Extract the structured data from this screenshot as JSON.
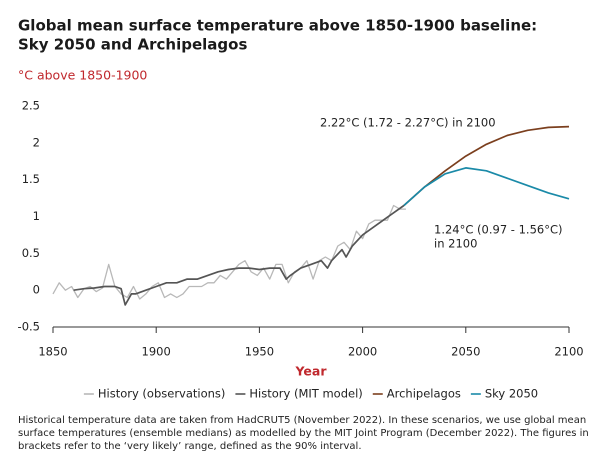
{
  "chart_data": {
    "type": "line",
    "title": [
      "Global mean surface temperature above 1850-1900 baseline:",
      "Sky 2050 and Archipelagos"
    ],
    "y_label": "°C above 1850-1900",
    "x_label": "Year",
    "annotations": [
      "2.22°C (1.72 - 2.27°C) in 2100",
      "1.24°C (0.97 - 1.56°C)",
      "in 2100"
    ],
    "note": "Historical temperature data are taken from HadCRUT5 (November 2022). In these scenarios, we use global mean surface temperatures (ensemble medians) as modelled by the MIT Joint Program (December 2022). The figures in brackets refer to the ‘very likely’ range, defined as the 90% interval.",
    "xlim": [
      1850,
      2100
    ],
    "xticks": [
      1850,
      1900,
      1950,
      2000,
      2050,
      2100
    ],
    "ylim": [
      -0.5,
      2.5
    ],
    "yticks": [
      -0.5,
      0,
      0.5,
      1,
      1.5,
      2,
      2.5
    ],
    "grid": false,
    "series": [
      {
        "name": "History (observations)",
        "color": "#b8b8b8",
        "x": [
          1850,
          1853,
          1856,
          1859,
          1862,
          1865,
          1868,
          1871,
          1874,
          1877,
          1880,
          1883,
          1886,
          1889,
          1892,
          1895,
          1898,
          1901,
          1904,
          1907,
          1910,
          1913,
          1916,
          1919,
          1922,
          1925,
          1928,
          1931,
          1934,
          1937,
          1940,
          1943,
          1946,
          1949,
          1952,
          1955,
          1958,
          1961,
          1964,
          1967,
          1970,
          1973,
          1976,
          1979,
          1982,
          1985,
          1988,
          1991,
          1994,
          1997,
          2000,
          2003,
          2006,
          2009,
          2012,
          2015,
          2018,
          2021
        ],
        "values": [
          -0.05,
          0.1,
          0.0,
          0.05,
          -0.1,
          0.02,
          0.05,
          -0.02,
          0.03,
          0.35,
          0.05,
          -0.05,
          -0.1,
          0.05,
          -0.12,
          -0.05,
          0.05,
          0.1,
          -0.1,
          -0.05,
          -0.1,
          -0.05,
          0.05,
          0.05,
          0.05,
          0.1,
          0.1,
          0.2,
          0.15,
          0.25,
          0.35,
          0.4,
          0.25,
          0.2,
          0.3,
          0.15,
          0.35,
          0.35,
          0.1,
          0.25,
          0.3,
          0.4,
          0.15,
          0.4,
          0.45,
          0.4,
          0.6,
          0.65,
          0.55,
          0.8,
          0.7,
          0.9,
          0.95,
          0.95,
          0.95,
          1.15,
          1.1,
          1.1
        ]
      },
      {
        "name": "History (MIT model)",
        "color": "#555555",
        "x": [
          1860,
          1865,
          1870,
          1875,
          1880,
          1883,
          1885,
          1888,
          1890,
          1895,
          1900,
          1905,
          1910,
          1915,
          1920,
          1925,
          1930,
          1935,
          1940,
          1945,
          1950,
          1955,
          1960,
          1963,
          1965,
          1970,
          1975,
          1980,
          1983,
          1985,
          1990,
          1992,
          1995,
          2000,
          2005,
          2010,
          2015,
          2020
        ],
        "values": [
          0.0,
          0.02,
          0.03,
          0.05,
          0.05,
          0.02,
          -0.2,
          -0.05,
          -0.05,
          0.0,
          0.05,
          0.1,
          0.1,
          0.15,
          0.15,
          0.2,
          0.25,
          0.28,
          0.3,
          0.3,
          0.28,
          0.3,
          0.3,
          0.15,
          0.2,
          0.3,
          0.35,
          0.4,
          0.3,
          0.4,
          0.55,
          0.45,
          0.6,
          0.75,
          0.85,
          0.95,
          1.05,
          1.15
        ]
      },
      {
        "name": "Archipelagos",
        "color": "#7b3f1e",
        "x": [
          2020,
          2030,
          2040,
          2050,
          2060,
          2070,
          2080,
          2090,
          2100
        ],
        "values": [
          1.15,
          1.4,
          1.62,
          1.82,
          1.98,
          2.1,
          2.17,
          2.21,
          2.22
        ]
      },
      {
        "name": "Sky 2050",
        "color": "#1a8aa8",
        "x": [
          2020,
          2030,
          2040,
          2050,
          2060,
          2070,
          2080,
          2090,
          2100
        ],
        "values": [
          1.15,
          1.4,
          1.58,
          1.66,
          1.62,
          1.52,
          1.42,
          1.32,
          1.24
        ]
      }
    ]
  }
}
